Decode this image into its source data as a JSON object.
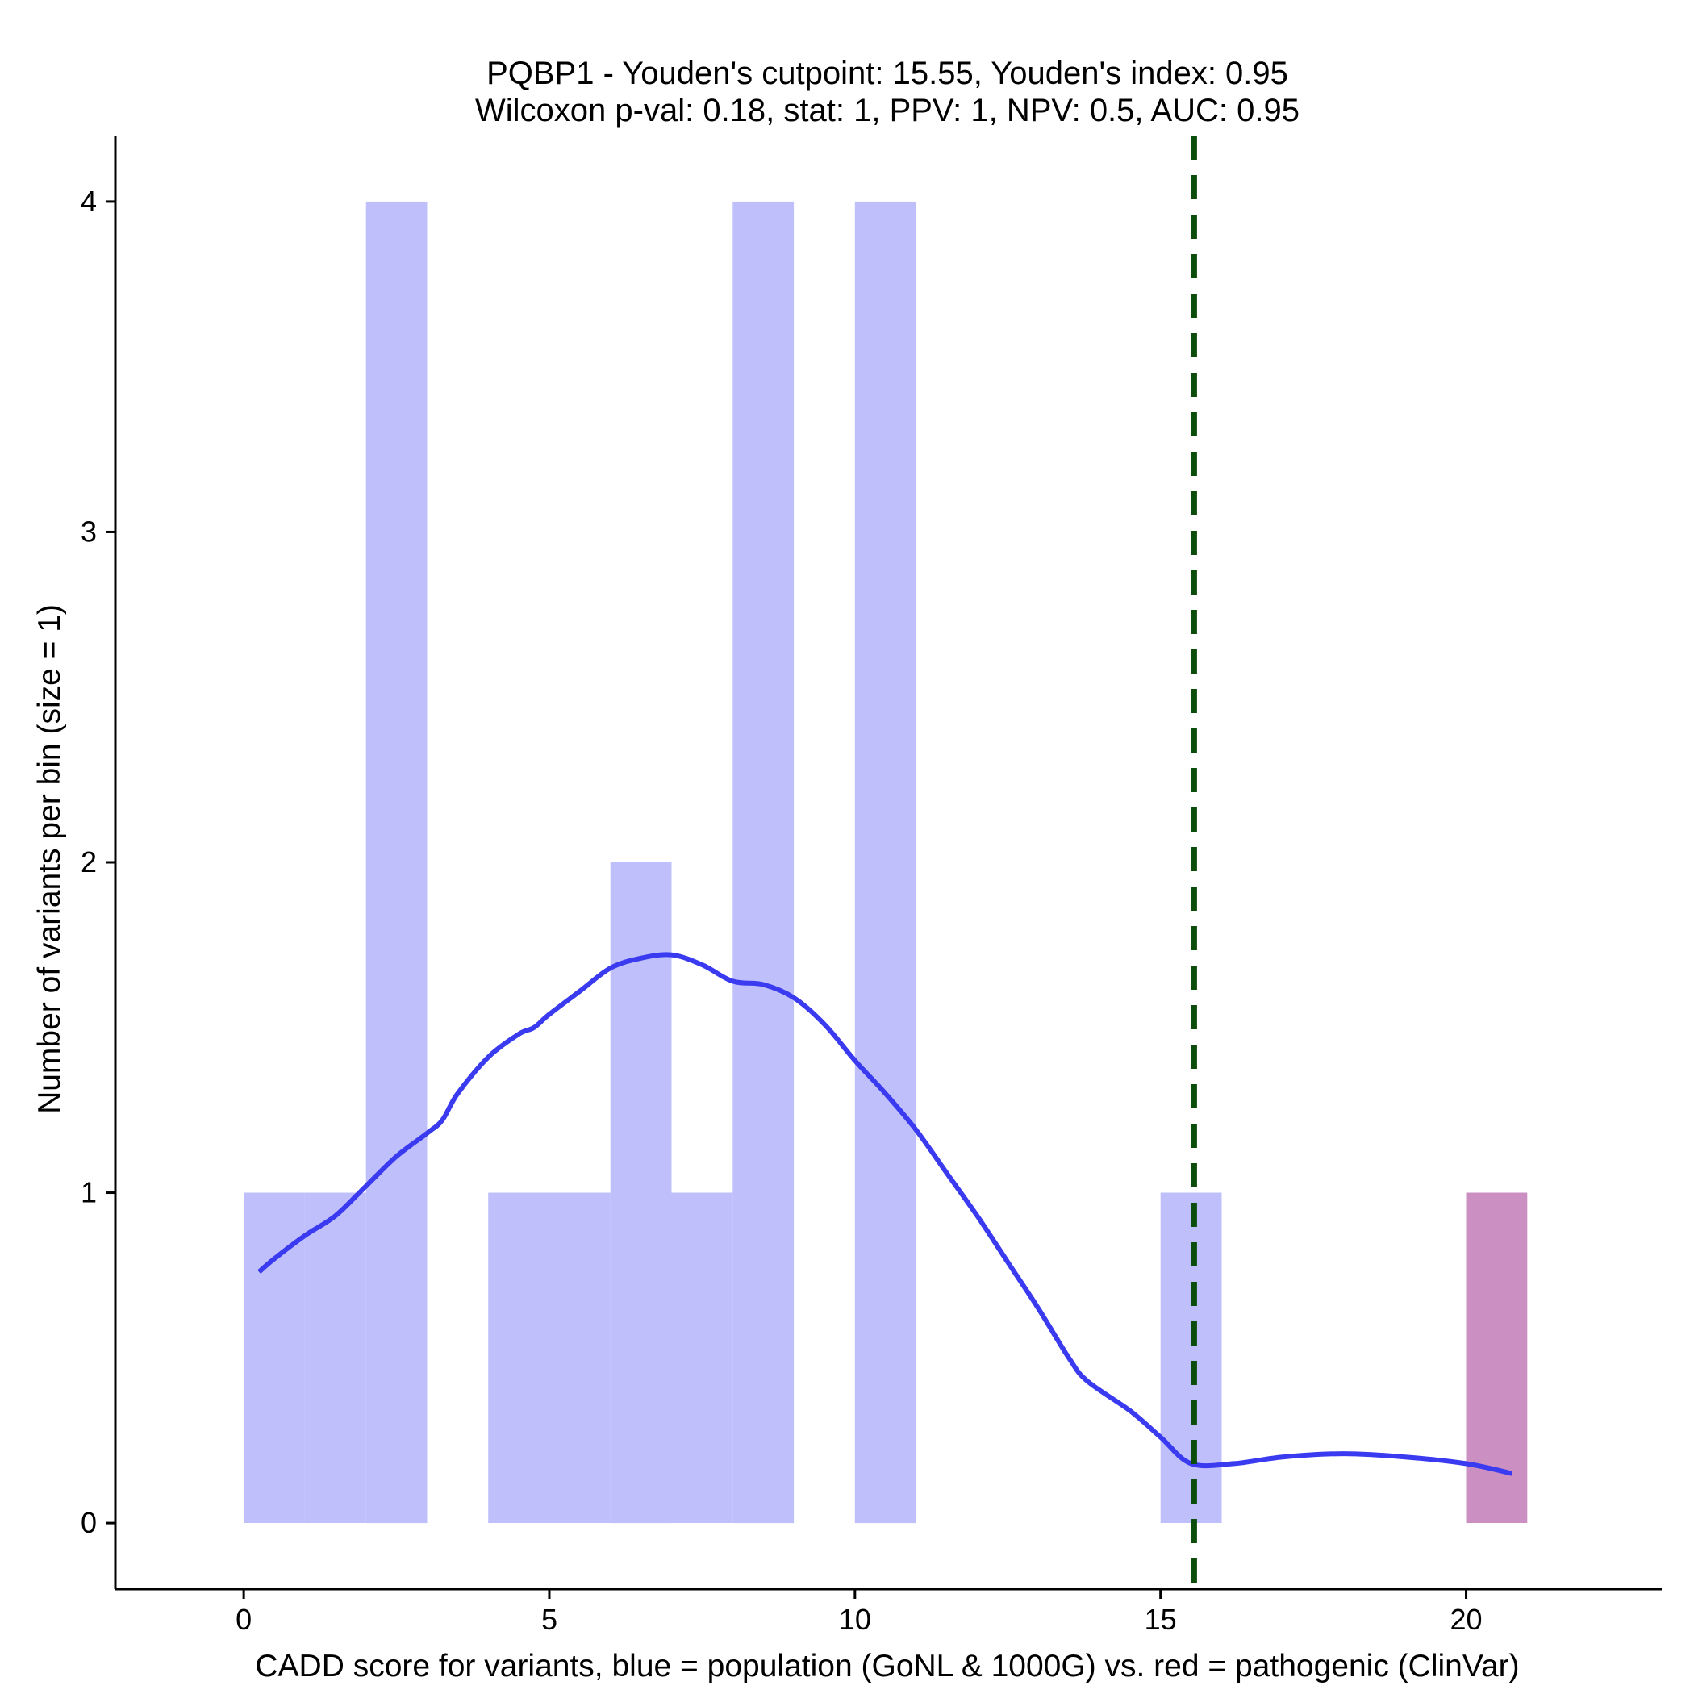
{
  "chart_data": {
    "type": "bar",
    "title": "PQBP1 - Youden's cutpoint: 15.55, Youden's index: 0.95",
    "subtitle": "Wilcoxon p-val: 0.18, stat: 1, PPV: 1, NPV: 0.5, AUC: 0.95",
    "xlabel": "CADD score for variants, blue = population (GoNL & 1000G) vs. red = pathogenic (ClinVar)",
    "ylabel": "Number of variants per bin (size = 1)",
    "xlim": [
      -2.1,
      23.2
    ],
    "ylim": [
      -0.2,
      4.2
    ],
    "x_ticks": [
      0,
      5,
      10,
      15,
      20
    ],
    "y_ticks": [
      0,
      1,
      2,
      3,
      4
    ],
    "bin_size": 1,
    "grid": false,
    "cutpoint": 15.55,
    "cutpoint_color": "#0b4d0b",
    "series": [
      {
        "color": "#bfbffc",
        "bins": [
          {
            "x0": 0,
            "x1": 1,
            "count": 1
          },
          {
            "x0": 1,
            "x1": 2,
            "count": 1
          },
          {
            "x0": 2,
            "x1": 3,
            "count": 4
          },
          {
            "x0": 4,
            "x1": 5,
            "count": 1
          },
          {
            "x0": 5,
            "x1": 6,
            "count": 1
          },
          {
            "x0": 6,
            "x1": 7,
            "count": 2
          },
          {
            "x0": 7,
            "x1": 8,
            "count": 1
          },
          {
            "x0": 8,
            "x1": 9,
            "count": 4
          },
          {
            "x0": 10,
            "x1": 11,
            "count": 4
          },
          {
            "x0": 15,
            "x1": 16,
            "count": 1
          }
        ]
      },
      {
        "color": "#cc8fc2",
        "bins": [
          {
            "x0": 20,
            "x1": 21,
            "count": 1
          }
        ]
      }
    ],
    "density": {
      "color": "#3a3af0",
      "points": [
        [
          0.25,
          0.76
        ],
        [
          0.5,
          0.8
        ],
        [
          1.0,
          0.87
        ],
        [
          1.5,
          0.93
        ],
        [
          2.0,
          1.02
        ],
        [
          2.5,
          1.11
        ],
        [
          3.0,
          1.18
        ],
        [
          3.25,
          1.22
        ],
        [
          3.5,
          1.3
        ],
        [
          4.0,
          1.41
        ],
        [
          4.5,
          1.48
        ],
        [
          4.75,
          1.5
        ],
        [
          5.0,
          1.54
        ],
        [
          5.5,
          1.61
        ],
        [
          6.0,
          1.68
        ],
        [
          6.5,
          1.71
        ],
        [
          7.0,
          1.72
        ],
        [
          7.5,
          1.69
        ],
        [
          8.0,
          1.64
        ],
        [
          8.5,
          1.63
        ],
        [
          9.0,
          1.59
        ],
        [
          9.5,
          1.51
        ],
        [
          10.0,
          1.4
        ],
        [
          10.5,
          1.3
        ],
        [
          11.0,
          1.19
        ],
        [
          11.5,
          1.06
        ],
        [
          12.0,
          0.93
        ],
        [
          12.5,
          0.79
        ],
        [
          13.0,
          0.65
        ],
        [
          13.5,
          0.5
        ],
        [
          13.8,
          0.43
        ],
        [
          14.5,
          0.34
        ],
        [
          15.0,
          0.26
        ],
        [
          15.5,
          0.18
        ],
        [
          16.2,
          0.18
        ],
        [
          17.0,
          0.2
        ],
        [
          18.0,
          0.21
        ],
        [
          19.0,
          0.2
        ],
        [
          20.0,
          0.18
        ],
        [
          20.75,
          0.15
        ]
      ]
    }
  }
}
